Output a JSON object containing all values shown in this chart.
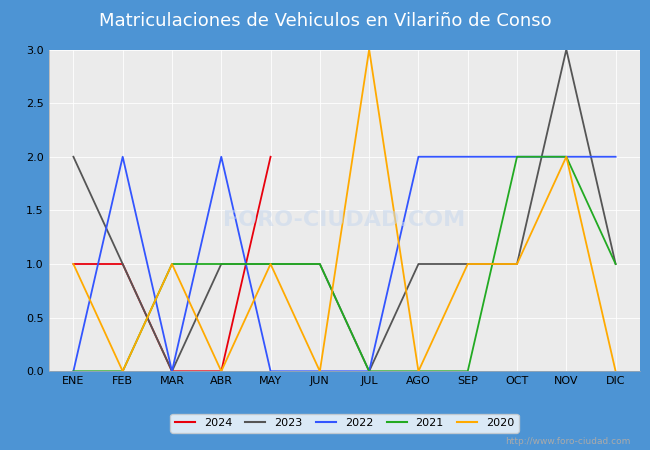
{
  "title": "Matriculaciones de Vehiculos en Vilariño de Conso",
  "months": [
    "ENE",
    "FEB",
    "MAR",
    "ABR",
    "MAY",
    "JUN",
    "JUL",
    "AGO",
    "SEP",
    "OCT",
    "NOV",
    "DIC"
  ],
  "series": {
    "2024": {
      "color": "#e8000d",
      "data": [
        1,
        1,
        0,
        0,
        2,
        null,
        null,
        null,
        null,
        null,
        null,
        null
      ]
    },
    "2023": {
      "color": "#555555",
      "data": [
        2,
        1,
        0,
        1,
        1,
        1,
        0,
        1,
        1,
        1,
        3,
        1
      ]
    },
    "2022": {
      "color": "#3355ff",
      "data": [
        0,
        2,
        0,
        2,
        0,
        0,
        0,
        2,
        2,
        2,
        2,
        2
      ]
    },
    "2021": {
      "color": "#22aa22",
      "data": [
        0,
        0,
        1,
        1,
        1,
        1,
        0,
        0,
        0,
        2,
        2,
        1
      ]
    },
    "2020": {
      "color": "#ffaa00",
      "data": [
        1,
        0,
        1,
        0,
        1,
        0,
        3,
        0,
        1,
        1,
        2,
        0
      ]
    }
  },
  "ylim": [
    0,
    3.0
  ],
  "yticks": [
    0.0,
    0.5,
    1.0,
    1.5,
    2.0,
    2.5,
    3.0
  ],
  "plot_bg": "#ebebeb",
  "title_bg": "#4d94d4",
  "title_color": "#ffffff",
  "title_fontsize": 13,
  "tick_fontsize": 8,
  "legend_fontsize": 8,
  "grid_color": "#ffffff",
  "watermark_text": "http://www.foro-ciudad.com",
  "watermark_plot": "FORO-CIUDAD.COM",
  "legend_years": [
    "2024",
    "2023",
    "2022",
    "2021",
    "2020"
  ],
  "linewidth": 1.3
}
